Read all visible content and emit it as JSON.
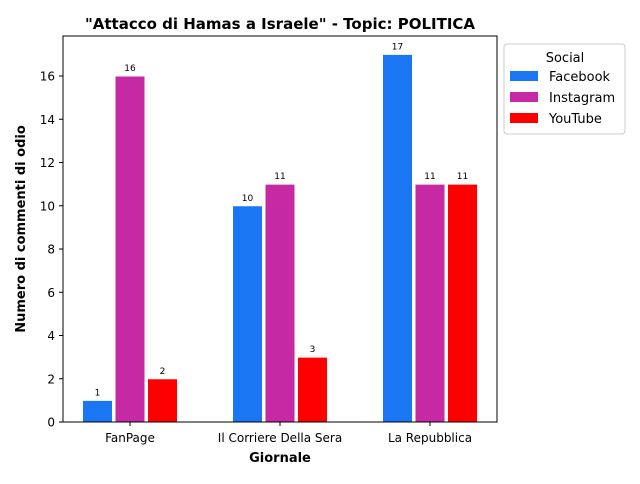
{
  "chart_data": {
    "type": "bar",
    "title": "\"Attacco di Hamas a Israele\" - Topic: POLITICA",
    "xlabel": "Giornale",
    "ylabel": "Numero di commenti di odio",
    "categories": [
      "FanPage",
      "Il Corriere Della Sera",
      "La Repubblica"
    ],
    "series": [
      {
        "name": "Facebook",
        "color": "#1a76f2",
        "values": [
          1,
          10,
          17
        ]
      },
      {
        "name": "Instagram",
        "color": "#c529a3",
        "values": [
          16,
          11,
          11
        ]
      },
      {
        "name": "YouTube",
        "color": "#ff0000",
        "values": [
          2,
          3,
          11
        ]
      }
    ],
    "ylim": [
      0,
      17.85
    ],
    "yticks": [
      0,
      2,
      4,
      6,
      8,
      10,
      12,
      14,
      16
    ],
    "data_labels": true,
    "grid": false,
    "legend": {
      "title": "Social",
      "position": "outside-right-top"
    }
  }
}
